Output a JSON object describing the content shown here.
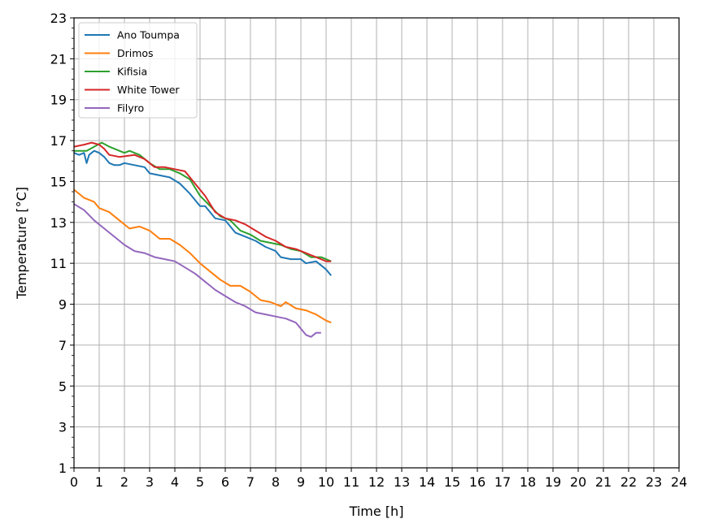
{
  "chart_data": {
    "type": "line",
    "xlabel": "Time [h]",
    "ylabel": "Temperature [°C]",
    "xlim": [
      0,
      24
    ],
    "ylim": [
      1,
      23
    ],
    "xticks": [
      "0",
      "1",
      "2",
      "3",
      "4",
      "5",
      "6",
      "7",
      "8",
      "9",
      "10",
      "11",
      "12",
      "13",
      "14",
      "15",
      "16",
      "17",
      "18",
      "19",
      "20",
      "21",
      "22",
      "23",
      "24"
    ],
    "yticks": [
      "1",
      "3",
      "5",
      "7",
      "9",
      "11",
      "13",
      "15",
      "17",
      "19",
      "21",
      "23"
    ],
    "grid": true,
    "legend_position": "top-left",
    "series": [
      {
        "name": "Ano Toumpa",
        "color": "#1f77b4",
        "x": [
          0,
          0.2,
          0.4,
          0.5,
          0.6,
          0.8,
          1.0,
          1.2,
          1.4,
          1.6,
          1.8,
          2.0,
          2.4,
          2.8,
          3.0,
          3.4,
          3.8,
          4.2,
          4.6,
          5.0,
          5.2,
          5.6,
          6.0,
          6.4,
          6.8,
          7.2,
          7.6,
          8.0,
          8.2,
          8.6,
          9.0,
          9.2,
          9.6,
          10.0,
          10.2
        ],
        "y": [
          16.4,
          16.3,
          16.4,
          15.9,
          16.3,
          16.5,
          16.4,
          16.2,
          15.9,
          15.8,
          15.8,
          15.9,
          15.8,
          15.7,
          15.4,
          15.3,
          15.2,
          14.9,
          14.4,
          13.8,
          13.8,
          13.2,
          13.1,
          12.5,
          12.3,
          12.1,
          11.8,
          11.6,
          11.3,
          11.2,
          11.2,
          11.0,
          11.1,
          10.7,
          10.4
        ]
      },
      {
        "name": "Drimos",
        "color": "#ff7f0e",
        "x": [
          0,
          0.4,
          0.8,
          1.0,
          1.4,
          1.8,
          2.2,
          2.6,
          3.0,
          3.4,
          3.8,
          4.2,
          4.6,
          5.0,
          5.4,
          5.8,
          6.2,
          6.6,
          7.0,
          7.4,
          7.8,
          8.2,
          8.4,
          8.8,
          9.2,
          9.6,
          10.0,
          10.2
        ],
        "y": [
          14.6,
          14.2,
          14.0,
          13.7,
          13.5,
          13.1,
          12.7,
          12.8,
          12.6,
          12.2,
          12.2,
          11.9,
          11.5,
          11.0,
          10.6,
          10.2,
          9.9,
          9.9,
          9.6,
          9.2,
          9.1,
          8.9,
          9.1,
          8.8,
          8.7,
          8.5,
          8.2,
          8.1
        ]
      },
      {
        "name": "Kifisia",
        "color": "#2ca02c",
        "x": [
          0,
          0.5,
          0.8,
          1.1,
          1.4,
          1.8,
          2.0,
          2.2,
          2.6,
          3.0,
          3.4,
          3.8,
          4.2,
          4.6,
          5.0,
          5.4,
          5.8,
          6.2,
          6.6,
          7.0,
          7.4,
          7.8,
          8.2,
          8.6,
          9.0,
          9.4,
          9.8,
          10.2
        ],
        "y": [
          16.5,
          16.5,
          16.7,
          16.9,
          16.7,
          16.5,
          16.4,
          16.5,
          16.3,
          15.9,
          15.6,
          15.6,
          15.4,
          15.1,
          14.3,
          13.8,
          13.3,
          13.1,
          12.6,
          12.4,
          12.1,
          12.0,
          11.9,
          11.7,
          11.6,
          11.3,
          11.3,
          11.1
        ]
      },
      {
        "name": "White Tower",
        "color": "#d62728",
        "x": [
          0,
          0.4,
          0.7,
          1.0,
          1.2,
          1.4,
          1.8,
          2.4,
          2.8,
          3.2,
          3.6,
          4.0,
          4.4,
          4.8,
          5.2,
          5.6,
          6.0,
          6.4,
          6.8,
          7.2,
          7.6,
          8.0,
          8.4,
          8.8,
          9.2,
          9.6,
          10.0,
          10.2
        ],
        "y": [
          16.7,
          16.8,
          16.9,
          16.8,
          16.6,
          16.3,
          16.2,
          16.3,
          16.1,
          15.7,
          15.7,
          15.6,
          15.5,
          14.9,
          14.3,
          13.5,
          13.2,
          13.1,
          12.9,
          12.6,
          12.3,
          12.1,
          11.8,
          11.7,
          11.5,
          11.3,
          11.1,
          11.1
        ]
      },
      {
        "name": "Filyro",
        "color": "#9467bd",
        "x": [
          0,
          0.4,
          0.8,
          1.2,
          1.6,
          2.0,
          2.4,
          2.8,
          3.2,
          3.6,
          4.0,
          4.4,
          4.8,
          5.2,
          5.6,
          6.0,
          6.4,
          6.8,
          7.2,
          7.6,
          8.0,
          8.4,
          8.8,
          9.0,
          9.2,
          9.4,
          9.6,
          9.8
        ],
        "y": [
          13.9,
          13.6,
          13.1,
          12.7,
          12.3,
          11.9,
          11.6,
          11.5,
          11.3,
          11.2,
          11.1,
          10.8,
          10.5,
          10.1,
          9.7,
          9.4,
          9.1,
          8.9,
          8.6,
          8.5,
          8.4,
          8.3,
          8.1,
          7.8,
          7.5,
          7.4,
          7.6,
          7.6
        ]
      }
    ]
  }
}
